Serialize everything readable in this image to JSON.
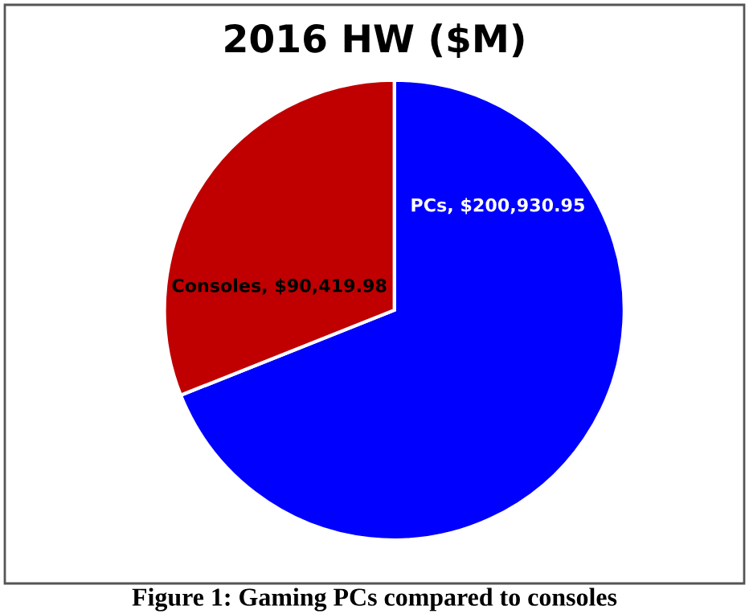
{
  "chart_data": {
    "type": "pie",
    "title": "2016 HW ($M)",
    "categories": [
      "PCs",
      "Consoles"
    ],
    "values": [
      200930.95,
      90419.98
    ],
    "colors": [
      "#0000ff",
      "#c00000"
    ],
    "value_labels": [
      "$200,930.95",
      "$90,419.98"
    ],
    "annotations": [
      "Figure 1: Gaming PCs compared to consoles"
    ]
  }
}
